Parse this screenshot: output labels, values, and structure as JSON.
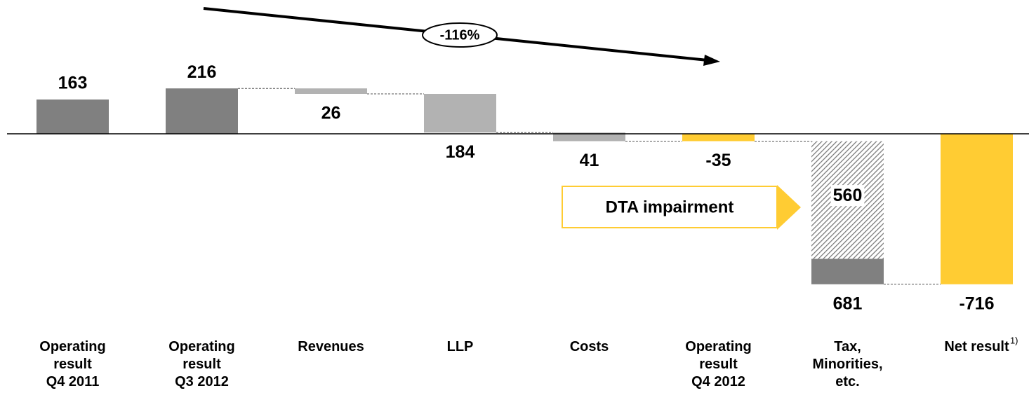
{
  "chart_data": {
    "type": "waterfall",
    "categories": [
      [
        "Operating",
        "result",
        "Q4 2011"
      ],
      [
        "Operating",
        "result",
        "Q3 2012"
      ],
      [
        "Revenues"
      ],
      [
        "LLP"
      ],
      [
        "Costs"
      ],
      [
        "Operating",
        "result",
        "Q4 2012"
      ],
      [
        "Tax,",
        "Minorities,",
        "etc."
      ],
      [
        "Net result"
      ]
    ],
    "footnote_marker": "1)",
    "values": [
      163,
      216,
      26,
      184,
      41,
      -35,
      681,
      -716
    ],
    "measure": [
      "total",
      "total",
      "decrease",
      "decrease",
      "decrease",
      "total",
      "decrease",
      "total"
    ],
    "colors": [
      "#808080",
      "#808080",
      "#b2b2b2",
      "#b2b2b2",
      "#b2b2b2",
      "#ffcc33",
      "#808080",
      "#ffcc33"
    ],
    "dta": {
      "label": "DTA impairment",
      "value": 560
    },
    "change_annotation": "-116%"
  }
}
